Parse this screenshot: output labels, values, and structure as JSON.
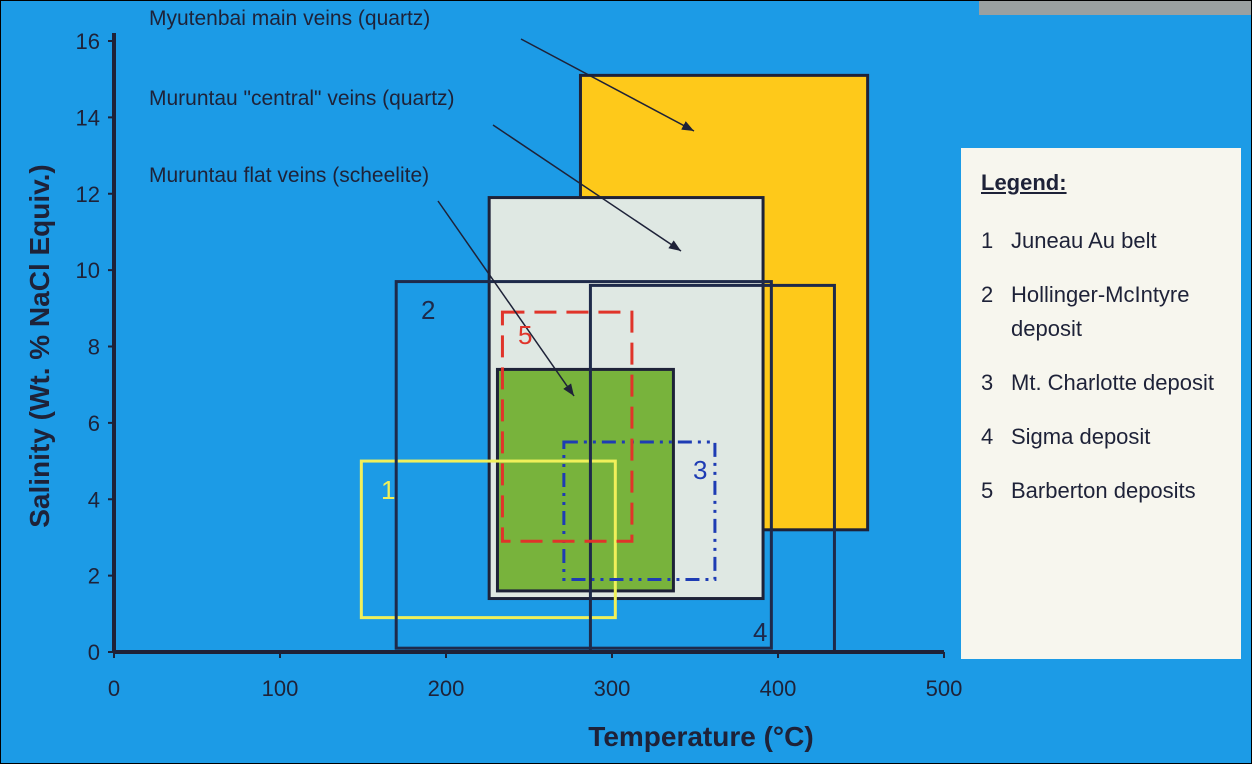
{
  "chart_data": {
    "type": "range-box",
    "xlabel": "Temperature (°C)",
    "ylabel": "Salinity (Wt. % NaCl Equiv.)",
    "legend_title": "Legend:",
    "xlim": [
      0,
      500
    ],
    "xticks": [
      0,
      100,
      200,
      300,
      400,
      500
    ],
    "ylim": [
      0,
      16
    ],
    "yticks": [
      0,
      2,
      4,
      6,
      8,
      10,
      12,
      14,
      16
    ],
    "series": [
      {
        "name": "Myutenbai main veins (quartz)",
        "color": "#fec91a",
        "filled": true,
        "style": "solid",
        "x": [
          281,
          454
        ],
        "y": [
          3.2,
          15.1
        ]
      },
      {
        "name": "Muruntau \"central\" veins (quartz)",
        "color": "#dfe8e3",
        "filled": true,
        "style": "solid",
        "x": [
          226,
          391
        ],
        "y": [
          1.4,
          11.9
        ]
      },
      {
        "name": "Muruntau flat veins (scheelite)",
        "color": "#78b33c",
        "filled": true,
        "style": "solid",
        "x": [
          231,
          337
        ],
        "y": [
          1.6,
          7.4
        ]
      },
      {
        "label": "1",
        "name": "Juneau Au belt",
        "color": "#f0f05a",
        "filled": false,
        "style": "solid",
        "x": [
          149,
          302
        ],
        "y": [
          0.9,
          5.0
        ]
      },
      {
        "label": "2",
        "name": "Hollinger-McIntyre deposit",
        "color": "#1e2a4a",
        "filled": false,
        "style": "solid",
        "x": [
          170,
          396
        ],
        "y": [
          0.1,
          9.7
        ]
      },
      {
        "label": "3",
        "name": "Mt. Charlotte deposit",
        "color": "#1e3cb4",
        "filled": false,
        "style": "dashdot",
        "x": [
          271,
          362
        ],
        "y": [
          1.9,
          5.5
        ]
      },
      {
        "label": "4",
        "name": "Sigma deposit",
        "color": "#1e2a4a",
        "filled": false,
        "style": "solid",
        "x": [
          287,
          434
        ],
        "y": [
          0,
          9.6
        ]
      },
      {
        "label": "5",
        "name": "Barberton deposits",
        "color": "#e0342a",
        "filled": false,
        "style": "dashed",
        "x": [
          234,
          312
        ],
        "y": [
          2.9,
          8.9
        ]
      }
    ]
  }
}
